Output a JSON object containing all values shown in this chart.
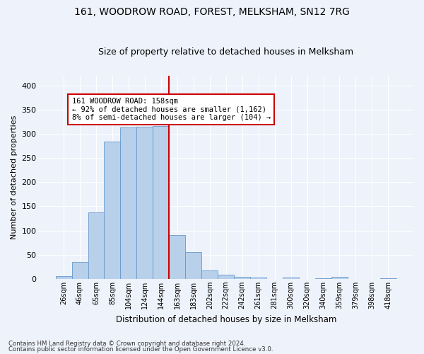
{
  "title": "161, WOODROW ROAD, FOREST, MELKSHAM, SN12 7RG",
  "subtitle": "Size of property relative to detached houses in Melksham",
  "xlabel": "Distribution of detached houses by size in Melksham",
  "ylabel": "Number of detached properties",
  "categories": [
    "26sqm",
    "46sqm",
    "65sqm",
    "85sqm",
    "104sqm",
    "124sqm",
    "144sqm",
    "163sqm",
    "183sqm",
    "202sqm",
    "222sqm",
    "242sqm",
    "261sqm",
    "281sqm",
    "300sqm",
    "320sqm",
    "340sqm",
    "359sqm",
    "379sqm",
    "398sqm",
    "418sqm"
  ],
  "values": [
    5,
    35,
    137,
    284,
    313,
    315,
    316,
    90,
    55,
    18,
    9,
    4,
    3,
    0,
    3,
    0,
    1,
    4,
    0,
    0,
    2
  ],
  "bar_color": "#b8d0ea",
  "bar_edge_color": "#6699cc",
  "background_color": "#eef2fb",
  "grid_color": "#ffffff",
  "vline_color": "#cc0000",
  "annotation_text": "161 WOODROW ROAD: 158sqm\n← 92% of detached houses are smaller (1,162)\n8% of semi-detached houses are larger (104) →",
  "annotation_box_color": "#ffffff",
  "annotation_box_edge": "#cc0000",
  "footer1": "Contains HM Land Registry data © Crown copyright and database right 2024.",
  "footer2": "Contains public sector information licensed under the Open Government Licence v3.0.",
  "ylim": [
    0,
    420
  ],
  "yticks": [
    0,
    50,
    100,
    150,
    200,
    250,
    300,
    350,
    400
  ],
  "vline_index": 6.5
}
